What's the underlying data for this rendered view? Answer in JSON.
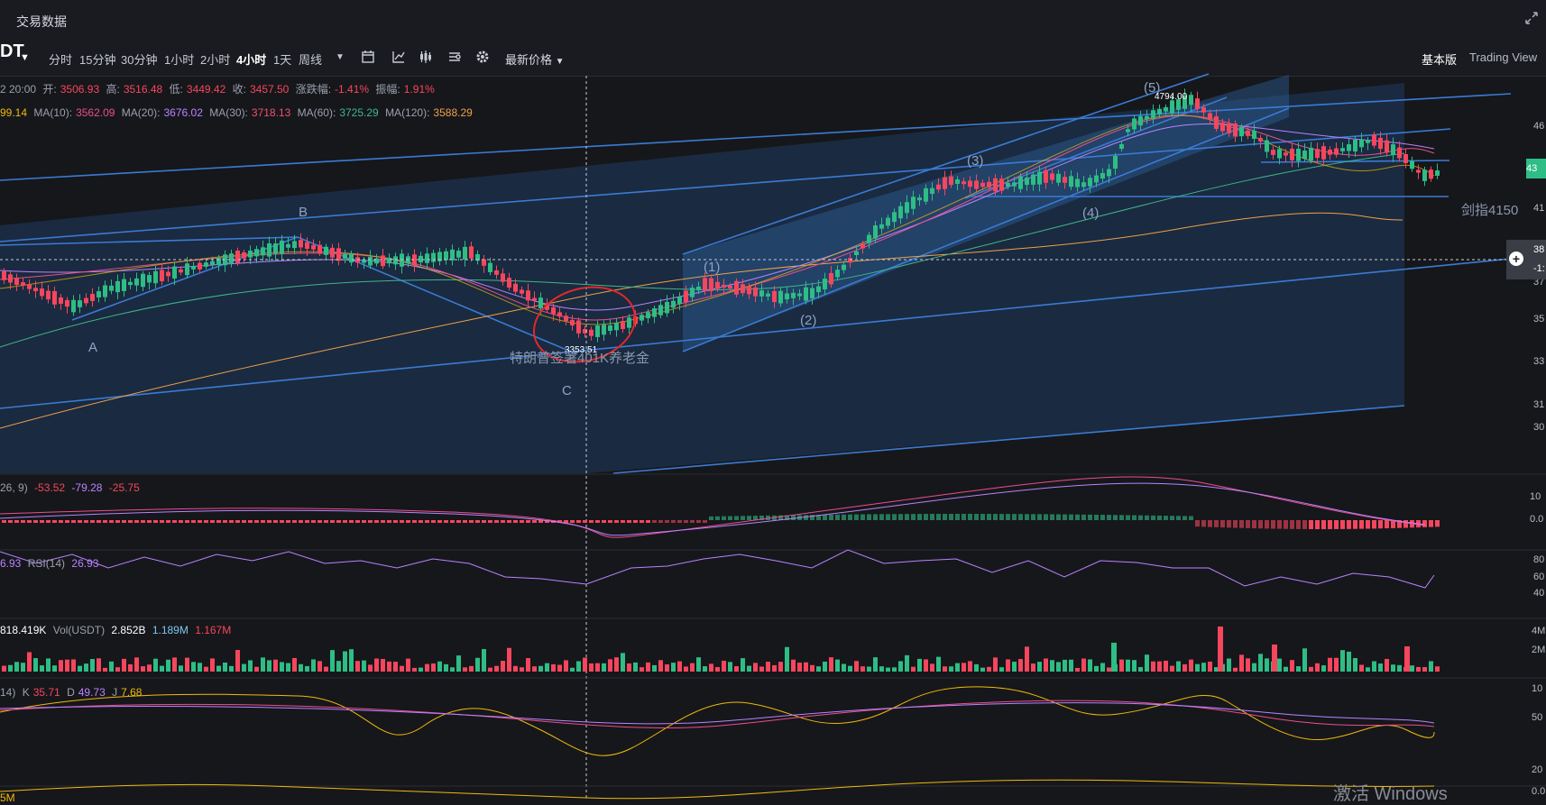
{
  "window": {
    "title": "交易数据"
  },
  "toolbar": {
    "pair": "DT",
    "timeframes": [
      "分时",
      "15分钟",
      "30分钟",
      "1小时",
      "2小时",
      "4小时",
      "1天",
      "周线"
    ],
    "active_timeframe": "4小时",
    "price_type": "最新价格",
    "basic_view": "基本版",
    "tradingview": "Trading View"
  },
  "ohlc": {
    "time": "2 20:00",
    "open_label": "开:",
    "open": "3506.93",
    "high_label": "高:",
    "high": "3516.48",
    "low_label": "低:",
    "low": "3449.42",
    "close_label": "收:",
    "close": "3457.50",
    "change_label": "涨跌幅:",
    "change": "-1.41%",
    "amp_label": "振幅:",
    "amp": "1.91%"
  },
  "ma": {
    "ma5": "99.14",
    "ma10_label": "MA(10):",
    "ma10": "3562.09",
    "ma20_label": "MA(20):",
    "ma20": "3676.02",
    "ma30_label": "MA(30):",
    "ma30": "3718.13",
    "ma60_label": "MA(60):",
    "ma60": "3725.29",
    "ma120_label": "MA(120):",
    "ma120": "3588.29"
  },
  "annotations": {
    "wave5": "(5)",
    "wave3": "(3)",
    "wave4": "(4)",
    "wave1": "(1)",
    "wave2": "(2)",
    "A": "A",
    "B": "B",
    "C": "C",
    "high_mark": "4794.00",
    "low_mark": "3353.51",
    "news": "特朗普签署401K养老金",
    "target": "剑指4150"
  },
  "price_axis": {
    "current": "43",
    "cross_price": "38",
    "cross_change": "-1:",
    "ticks": [
      "46",
      "41",
      "37",
      "35",
      "33",
      "31",
      "30"
    ]
  },
  "macd": {
    "params": "26, 9)",
    "v1": "-53.52",
    "v2": "-79.28",
    "v3": "-25.75",
    "ticks": [
      "10",
      "0.0"
    ]
  },
  "rsi": {
    "v0": "6.93",
    "label": "RSI(14)",
    "value": "26.93",
    "ticks": [
      "80",
      "60",
      "40"
    ]
  },
  "vol": {
    "v0": "818.419K",
    "label": "Vol(USDT)",
    "v1": "2.852B",
    "v2": "1.189M",
    "v3": "1.167M",
    "ticks": [
      "4M",
      "2M"
    ]
  },
  "kdj": {
    "params": "14)",
    "k_label": "K",
    "k": "35.71",
    "d_label": "D",
    "d": "49.73",
    "j_label": "J",
    "j": "7.68",
    "ticks": [
      "10",
      "50"
    ]
  },
  "obv": {
    "v0": "5M",
    "ticks": [
      "20",
      "0.0"
    ]
  },
  "watermark": "激活 Windows",
  "colors": {
    "up": "#2ebd85",
    "down": "#f6465d",
    "ma5": "#f0b90b",
    "ma10": "#e84f8c",
    "ma20": "#b983ff",
    "ma30": "#f0506e",
    "ma60": "#3fb68b",
    "ma120": "#f0a04b",
    "channel": "#3a7bd5"
  }
}
